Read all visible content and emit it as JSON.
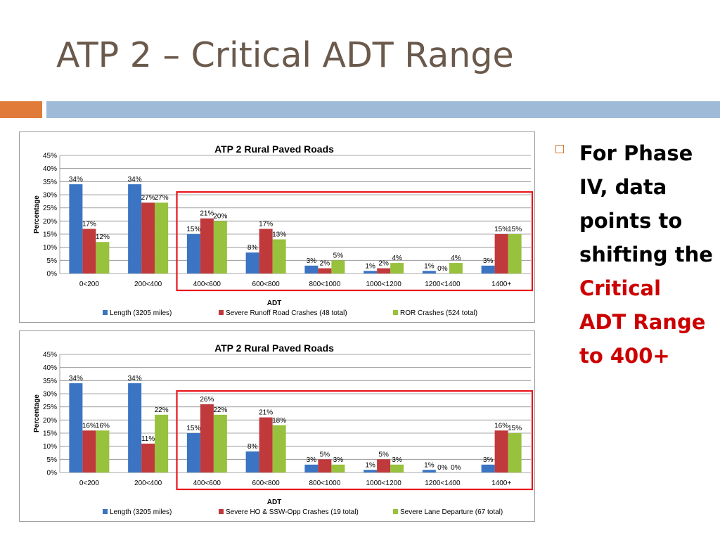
{
  "slide": {
    "title": "ATP 2 – Critical ADT Range",
    "bullet": {
      "prefix": "For Phase IV, data points to shifting the",
      "highlight": "Critical ADT Range to 400+"
    }
  },
  "colors": {
    "series": [
      "#3a74c2",
      "#c0393b",
      "#98c13d"
    ],
    "highlight_box": "#e8151b",
    "accent_orange": "#e07b39",
    "accent_blue": "#9ebad7"
  },
  "chart_data": [
    {
      "type": "bar",
      "title": "ATP 2 Rural Paved Roads",
      "xlabel": "ADT",
      "ylabel": "Percentage",
      "categories": [
        "0<200",
        "200<400",
        "400<600",
        "600<800",
        "800<1000",
        "1000<1200",
        "1200<1400",
        "1400+"
      ],
      "ylim": [
        0,
        45
      ],
      "yticks": [
        "0%",
        "5%",
        "10%",
        "15%",
        "20%",
        "25%",
        "30%",
        "35%",
        "40%",
        "45%"
      ],
      "series": [
        {
          "name": "Length (3205 miles)",
          "values": [
            34,
            34,
            15,
            8,
            3,
            1,
            1,
            3
          ],
          "labels": [
            "34%",
            "34%",
            "15%",
            "8%",
            "3%",
            "1%",
            "1%",
            "3%"
          ]
        },
        {
          "name": "Severe Runoff Road Crashes (48 total)",
          "values": [
            17,
            27,
            21,
            17,
            2,
            2,
            0,
            15
          ],
          "labels": [
            "17%",
            "27%",
            "21%",
            "17%",
            "2%",
            "2%",
            "0%",
            "15%"
          ]
        },
        {
          "name": "ROR Crashes (524 total)",
          "values": [
            12,
            27,
            20,
            13,
            5,
            4,
            4,
            15
          ],
          "labels": [
            "12%",
            "27%",
            "20%",
            "13%",
            "5%",
            "4%",
            "4%",
            "15%"
          ]
        }
      ],
      "grid": true,
      "legend": "bottom",
      "highlight_categories": [
        "400<600",
        "1400+"
      ]
    },
    {
      "type": "bar",
      "title": "ATP 2 Rural Paved Roads",
      "xlabel": "ADT",
      "ylabel": "Percentage",
      "categories": [
        "0<200",
        "200<400",
        "400<600",
        "600<800",
        "800<1000",
        "1000<1200",
        "1200<1400",
        "1400+"
      ],
      "ylim": [
        0,
        45
      ],
      "yticks": [
        "0%",
        "5%",
        "10%",
        "15%",
        "20%",
        "25%",
        "30%",
        "35%",
        "40%",
        "45%"
      ],
      "series": [
        {
          "name": "Length (3205 miles)",
          "values": [
            34,
            34,
            15,
            8,
            3,
            1,
            1,
            3
          ],
          "labels": [
            "34%",
            "34%",
            "15%",
            "8%",
            "3%",
            "1%",
            "1%",
            "3%"
          ]
        },
        {
          "name": "Severe HO & SSW-Opp Crashes (19 total)",
          "values": [
            16,
            11,
            26,
            21,
            5,
            5,
            0,
            16
          ],
          "labels": [
            "16%",
            "11%",
            "26%",
            "21%",
            "5%",
            "5%",
            "0%",
            "16%"
          ]
        },
        {
          "name": "Severe Lane Departure (67 total)",
          "values": [
            16,
            22,
            22,
            18,
            3,
            3,
            0,
            15
          ],
          "labels": [
            "16%",
            "22%",
            "22%",
            "18%",
            "3%",
            "3%",
            "0%",
            "15%"
          ]
        }
      ],
      "grid": true,
      "legend": "bottom",
      "highlight_categories": [
        "400<600",
        "1400+"
      ]
    }
  ]
}
